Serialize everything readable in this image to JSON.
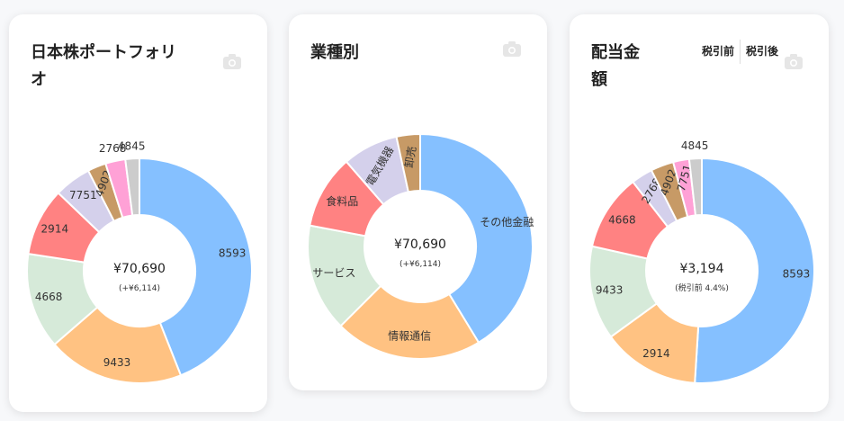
{
  "cards": {
    "portfolio": {
      "title": "日本株ポートフォリオ",
      "center_value": "¥70,690",
      "center_sub": "(+¥6,114)",
      "camera_icon": "camera-icon"
    },
    "sector": {
      "title": "業種別",
      "center_value": "¥70,690",
      "center_sub": "(+¥6,114)",
      "camera_icon": "camera-icon"
    },
    "dividend": {
      "title": "配当金額",
      "center_value": "¥3,194",
      "center_sub": "(税引前 4.4%)",
      "camera_icon": "camera-icon",
      "toggle": {
        "before_tax": "税引前",
        "after_tax": "税引後"
      }
    }
  },
  "chart_data": [
    {
      "type": "pie",
      "categories": [
        "8593",
        "9433",
        "4668",
        "2914",
        "7751",
        "4902",
        "2768",
        "4845"
      ],
      "values": [
        41.5,
        18.5,
        13.0,
        9.2,
        5.0,
        2.5,
        2.7,
        1.9
      ],
      "colors": [
        "#85c0ff",
        "#ffc282",
        "#d6ead9",
        "#ff8282",
        "#d4d0eb",
        "#c79a66",
        "#ffa1d6",
        "#cccccc"
      ]
    },
    {
      "type": "pie",
      "categories": [
        "その他金融",
        "情報通信",
        "サービス",
        "食料品",
        "電気機器",
        "卸売"
      ],
      "values": [
        41.3,
        21.2,
        15.5,
        10.6,
        8.0,
        3.4
      ],
      "colors": [
        "#85c0ff",
        "#ffc282",
        "#d6ead9",
        "#ff8282",
        "#d4d0eb",
        "#c79a66"
      ]
    },
    {
      "type": "pie",
      "categories": [
        "8593",
        "2914",
        "9433",
        "4668",
        "2768",
        "4902",
        "7751",
        "4845"
      ],
      "values": [
        51.0,
        14.0,
        13.5,
        11.0,
        3.1,
        3.3,
        2.3,
        1.8
      ],
      "colors": [
        "#85c0ff",
        "#ffc282",
        "#d6ead9",
        "#ff8282",
        "#d4d0eb",
        "#c79a66",
        "#ffa1d6",
        "#cccccc"
      ]
    }
  ]
}
